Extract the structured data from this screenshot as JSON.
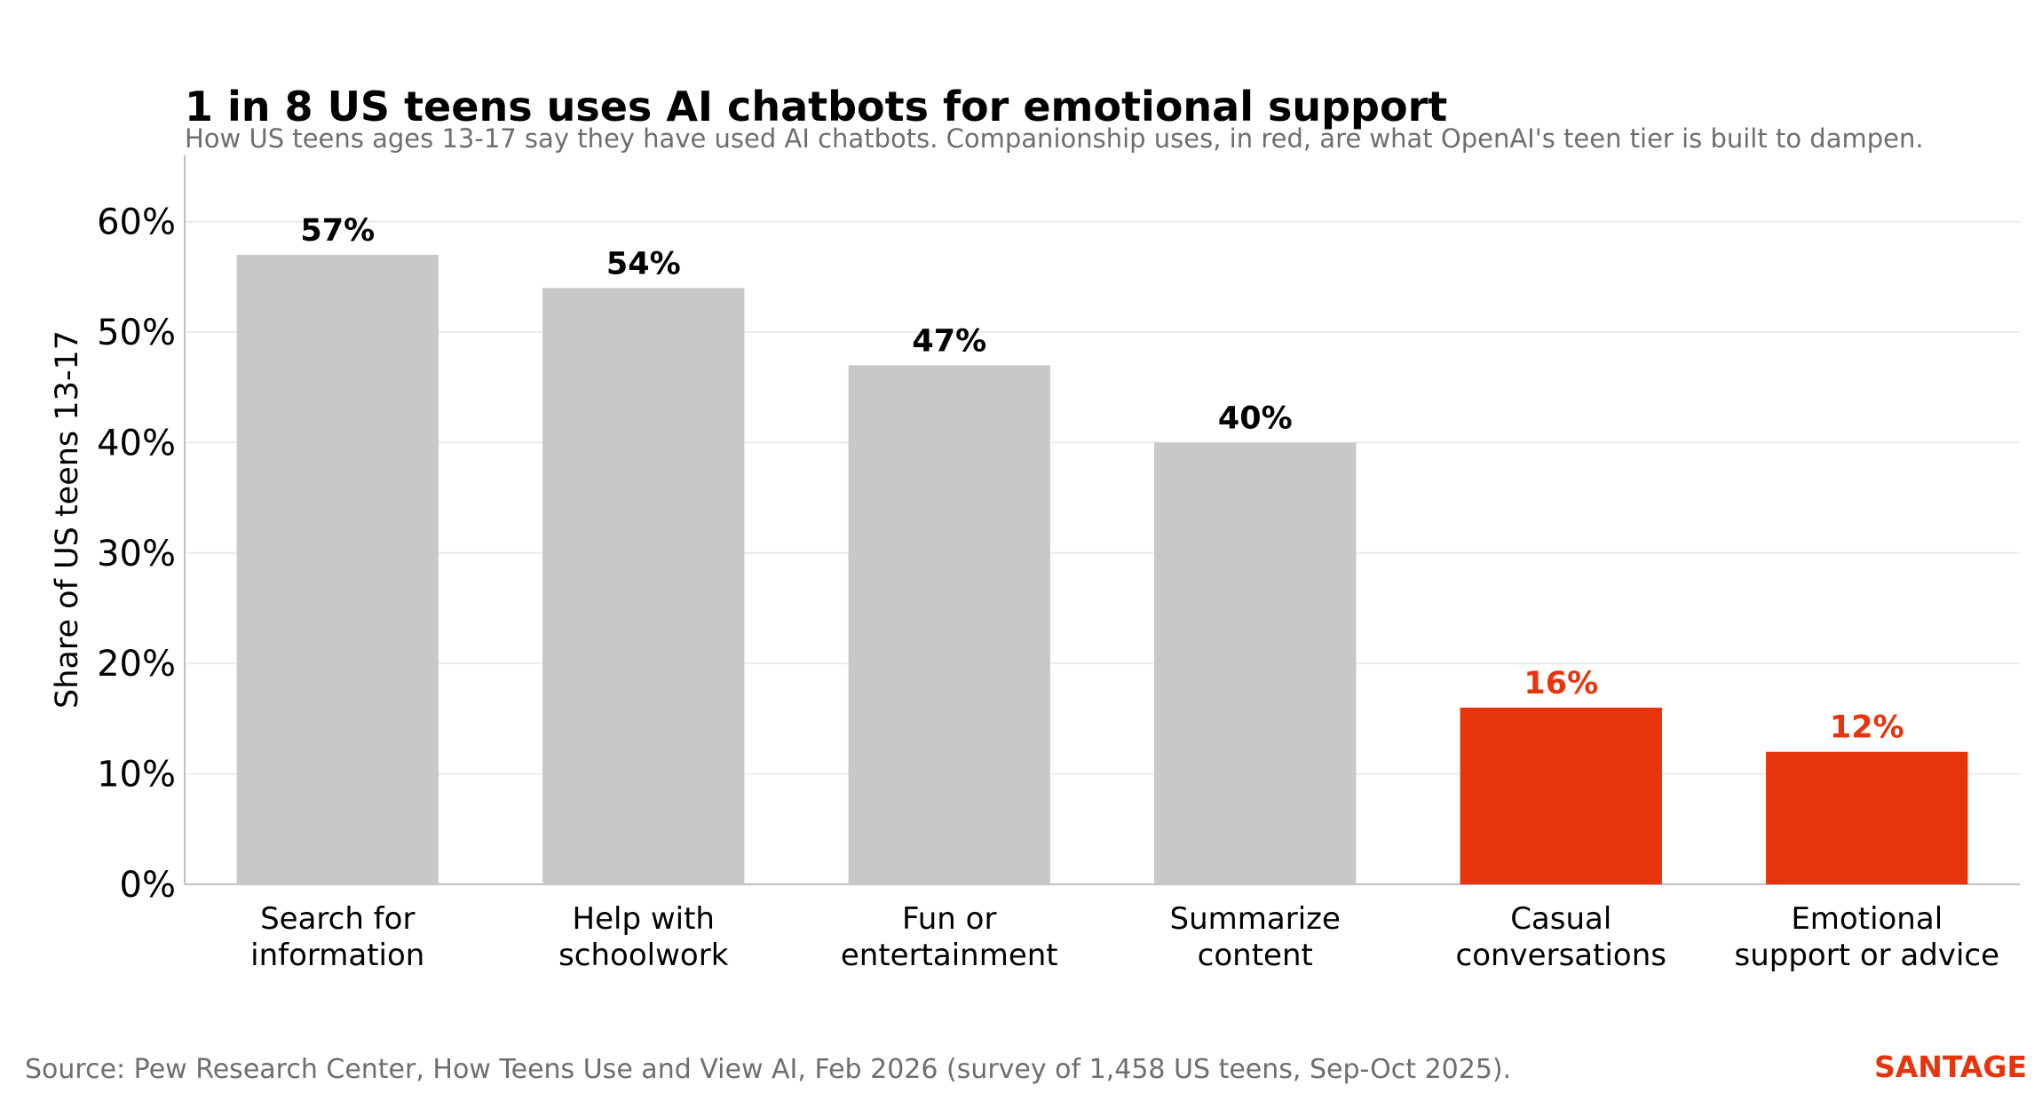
{
  "chart_data": {
    "type": "bar",
    "title": "1 in 8 US teens uses AI chatbots for emotional support",
    "subtitle": "How US teens ages 13-17 say they have used AI chatbots. Companionship uses, in red, are what OpenAI's teen tier is built to dampen.",
    "ylabel": "Share of US teens 13-17",
    "xlabel": "",
    "categories": [
      [
        "Search for",
        "information"
      ],
      [
        "Help with",
        "schoolwork"
      ],
      [
        "Fun or",
        "entertainment"
      ],
      [
        "Summarize",
        "content"
      ],
      [
        "Casual",
        "conversations"
      ],
      [
        "Emotional",
        "support or advice"
      ]
    ],
    "values": [
      57,
      54,
      47,
      40,
      16,
      12
    ],
    "data_labels": [
      "57%",
      "54%",
      "47%",
      "40%",
      "16%",
      "12%"
    ],
    "highlighted": [
      false,
      false,
      false,
      false,
      true,
      true
    ],
    "ylim": [
      0,
      66
    ],
    "yticks": [
      0,
      10,
      20,
      30,
      40,
      50,
      60
    ],
    "ytick_labels": [
      "0%",
      "10%",
      "20%",
      "30%",
      "40%",
      "50%",
      "60%"
    ],
    "grid": true,
    "legend": "none",
    "colors": {
      "base_bar": "#c8c8c8",
      "highlight_bar": "#e8340c",
      "base_label": "#000000",
      "highlight_label": "#e8340c",
      "grid": "#ebebeb",
      "axis": "#c0c0c0"
    }
  },
  "footer": {
    "source": "Source: Pew Research Center, How Teens Use and View AI, Feb 2026 (survey of 1,458 US teens, Sep-Oct 2025).",
    "brand": "SANTAGE",
    "brand_color": "#e8340c"
  }
}
